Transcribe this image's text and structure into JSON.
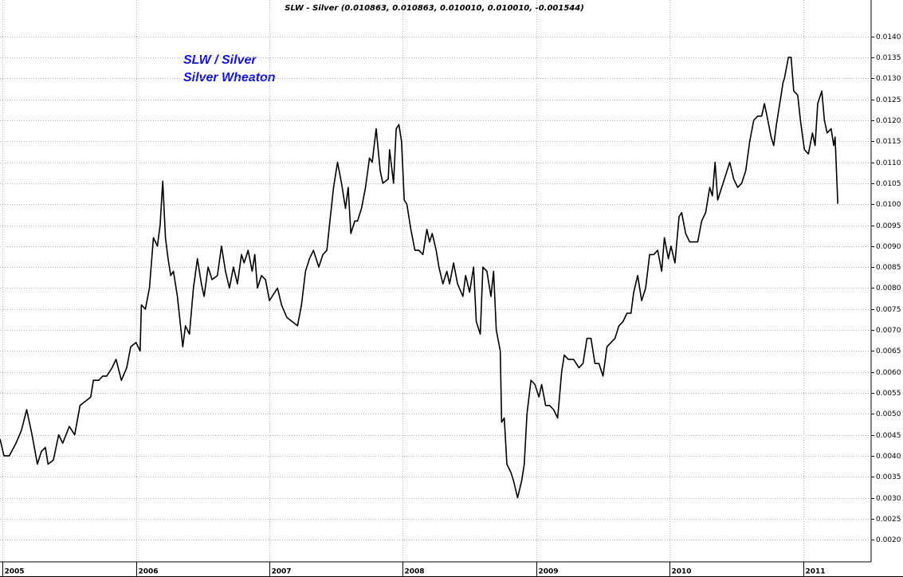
{
  "chart_data": {
    "type": "line",
    "title": "SLW - Silver (0.010863, 0.010863, 0.010010, 0.010010, -0.001544)",
    "annotations": [
      "SLW / Silver",
      "Silver Wheaton"
    ],
    "annotation_color": "#1010e0",
    "color": "#000000",
    "grid": true,
    "xlim": [
      2004.98,
      2011.51
    ],
    "xticks": [
      2005,
      2006,
      2007,
      2008,
      2009,
      2010,
      2011
    ],
    "ylim": [
      0.00147,
      0.01487
    ],
    "yticks": [
      {
        "value": 0.002,
        "label": "0.0020"
      },
      {
        "value": 0.0025,
        "label": "0.0025"
      },
      {
        "value": 0.003,
        "label": "0.0030"
      },
      {
        "value": 0.0035,
        "label": "0.0035"
      },
      {
        "value": 0.004,
        "label": "0.0040"
      },
      {
        "value": 0.0045,
        "label": "0.0045"
      },
      {
        "value": 0.005,
        "label": "0.0050"
      },
      {
        "value": 0.0055,
        "label": "0.0055"
      },
      {
        "value": 0.006,
        "label": "0.0060"
      },
      {
        "value": 0.0065,
        "label": "0.0065"
      },
      {
        "value": 0.007,
        "label": "0.0070"
      },
      {
        "value": 0.0075,
        "label": "0.0075"
      },
      {
        "value": 0.008,
        "label": "0.0080"
      },
      {
        "value": 0.0085,
        "label": "0.0085"
      },
      {
        "value": 0.009,
        "label": "0.0090"
      },
      {
        "value": 0.0095,
        "label": "0.0095"
      },
      {
        "value": 0.01,
        "label": "0.0100"
      },
      {
        "value": 0.0105,
        "label": "0.0105"
      },
      {
        "value": 0.011,
        "label": "0.0110"
      },
      {
        "value": 0.0115,
        "label": "0.0115"
      },
      {
        "value": 0.012,
        "label": "0.0120"
      },
      {
        "value": 0.0125,
        "label": "0.0125"
      },
      {
        "value": 0.013,
        "label": "0.0130"
      },
      {
        "value": 0.0135,
        "label": "0.0135"
      },
      {
        "value": 0.014,
        "label": "0.0140"
      }
    ],
    "x": [
      2004.98,
      2005.01,
      2005.05,
      2005.1,
      2005.14,
      2005.18,
      2005.22,
      2005.26,
      2005.29,
      2005.32,
      2005.34,
      2005.38,
      2005.42,
      2005.45,
      2005.5,
      2005.54,
      2005.58,
      2005.62,
      2005.66,
      2005.68,
      2005.72,
      2005.75,
      2005.78,
      2005.82,
      2005.85,
      2005.89,
      2005.93,
      2005.96,
      2006.0,
      2006.03,
      2006.04,
      2006.07,
      2006.1,
      2006.13,
      2006.16,
      2006.18,
      2006.2,
      2006.22,
      2006.24,
      2006.26,
      2006.28,
      2006.31,
      2006.35,
      2006.37,
      2006.4,
      2006.43,
      2006.46,
      2006.49,
      2006.51,
      2006.54,
      2006.57,
      2006.61,
      2006.64,
      2006.67,
      2006.7,
      2006.73,
      2006.76,
      2006.79,
      2006.81,
      2006.84,
      2006.87,
      2006.89,
      2006.91,
      2006.94,
      2006.97,
      2007.0,
      2007.04,
      2007.06,
      2007.09,
      2007.13,
      2007.17,
      2007.21,
      2007.24,
      2007.27,
      2007.3,
      2007.33,
      2007.37,
      2007.4,
      2007.43,
      2007.45,
      2007.48,
      2007.51,
      2007.54,
      2007.57,
      2007.59,
      2007.61,
      2007.64,
      2007.66,
      2007.69,
      2007.72,
      2007.75,
      2007.77,
      2007.8,
      2007.83,
      2007.85,
      2007.89,
      2007.9,
      2007.93,
      2007.95,
      2007.97,
      2007.99,
      2008.01,
      2008.03,
      2008.06,
      2008.09,
      2008.12,
      2008.15,
      2008.18,
      2008.2,
      2008.22,
      2008.25,
      2008.27,
      2008.3,
      2008.33,
      2008.35,
      2008.38,
      2008.41,
      2008.45,
      2008.47,
      2008.5,
      2008.53,
      2008.55,
      2008.58,
      2008.6,
      2008.63,
      2008.66,
      2008.68,
      2008.7,
      2008.73,
      2008.74,
      2008.76,
      2008.78,
      2008.81,
      2008.83,
      2008.86,
      2008.89,
      2008.91,
      2008.93,
      2008.96,
      2008.99,
      2009.02,
      2009.04,
      2009.07,
      2009.1,
      2009.13,
      2009.16,
      2009.19,
      2009.21,
      2009.24,
      2009.28,
      2009.32,
      2009.35,
      2009.38,
      2009.41,
      2009.44,
      2009.47,
      2009.5,
      2009.53,
      2009.56,
      2009.59,
      2009.62,
      2009.65,
      2009.68,
      2009.71,
      2009.73,
      2009.76,
      2009.79,
      2009.82,
      2009.85,
      2009.88,
      2009.91,
      2009.94,
      2009.96,
      2009.99,
      2010.01,
      2010.04,
      2010.07,
      2010.09,
      2010.12,
      2010.15,
      2010.18,
      2010.21,
      2010.24,
      2010.27,
      2010.3,
      2010.32,
      2010.34,
      2010.36,
      2010.39,
      2010.42,
      2010.45,
      2010.48,
      2010.51,
      2010.54,
      2010.57,
      2010.6,
      2010.63,
      2010.66,
      2010.69,
      2010.71,
      2010.73,
      2010.76,
      2010.78,
      2010.8,
      2010.83,
      2010.85,
      2010.86,
      2010.89,
      2010.91,
      2010.93,
      2010.96,
      2010.98,
      2011.01,
      2011.04,
      2011.07,
      2011.09,
      2011.11,
      2011.14,
      2011.16,
      2011.18,
      2011.21,
      2011.23,
      2011.24,
      2011.26
    ],
    "values": [
      0.0044,
      0.004,
      0.004,
      0.0043,
      0.0046,
      0.0051,
      0.0045,
      0.0038,
      0.0041,
      0.0042,
      0.0038,
      0.0039,
      0.0045,
      0.0043,
      0.0047,
      0.0045,
      0.0052,
      0.0053,
      0.0054,
      0.0058,
      0.0058,
      0.0059,
      0.0059,
      0.0061,
      0.0063,
      0.0058,
      0.0061,
      0.0066,
      0.0067,
      0.0065,
      0.0076,
      0.0075,
      0.008,
      0.0092,
      0.009,
      0.0095,
      0.01055,
      0.0092,
      0.0087,
      0.0083,
      0.0084,
      0.0078,
      0.0066,
      0.0071,
      0.0069,
      0.008,
      0.0087,
      0.0081,
      0.0078,
      0.0085,
      0.0082,
      0.0083,
      0.009,
      0.0084,
      0.008,
      0.0085,
      0.0081,
      0.0088,
      0.0086,
      0.0089,
      0.0084,
      0.0088,
      0.008,
      0.0083,
      0.0082,
      0.0077,
      0.0079,
      0.008,
      0.0076,
      0.0073,
      0.0072,
      0.0071,
      0.0076,
      0.0084,
      0.0087,
      0.0089,
      0.0085,
      0.0088,
      0.0089,
      0.0095,
      0.0104,
      0.011,
      0.0105,
      0.0099,
      0.0104,
      0.0093,
      0.0096,
      0.0096,
      0.0099,
      0.0104,
      0.0111,
      0.011,
      0.0118,
      0.0108,
      0.0105,
      0.0106,
      0.0113,
      0.0105,
      0.0118,
      0.0119,
      0.0115,
      0.0101,
      0.01,
      0.0094,
      0.0089,
      0.0089,
      0.0088,
      0.0094,
      0.0091,
      0.0093,
      0.0089,
      0.0085,
      0.0081,
      0.0084,
      0.0081,
      0.0086,
      0.0081,
      0.0078,
      0.0083,
      0.0079,
      0.0085,
      0.0072,
      0.0069,
      0.0085,
      0.0084,
      0.0078,
      0.0084,
      0.007,
      0.0065,
      0.0048,
      0.0049,
      0.0038,
      0.0036,
      0.0034,
      0.003,
      0.0034,
      0.0038,
      0.005,
      0.0058,
      0.0057,
      0.0054,
      0.0057,
      0.0052,
      0.0052,
      0.0051,
      0.0049,
      0.006,
      0.0064,
      0.0063,
      0.0063,
      0.0061,
      0.0062,
      0.0068,
      0.0068,
      0.0062,
      0.0062,
      0.0059,
      0.0066,
      0.0067,
      0.0068,
      0.0071,
      0.0072,
      0.0074,
      0.0074,
      0.0079,
      0.0083,
      0.0077,
      0.008,
      0.0088,
      0.0088,
      0.0089,
      0.0084,
      0.0092,
      0.0087,
      0.009,
      0.0086,
      0.0097,
      0.0098,
      0.0093,
      0.0091,
      0.0091,
      0.0091,
      0.0096,
      0.0098,
      0.0104,
      0.0102,
      0.011,
      0.0101,
      0.0104,
      0.0107,
      0.011,
      0.0106,
      0.0104,
      0.0105,
      0.0108,
      0.0115,
      0.012,
      0.0121,
      0.0121,
      0.0124,
      0.0121,
      0.0116,
      0.0114,
      0.0119,
      0.0125,
      0.0129,
      0.013,
      0.0135,
      0.0135,
      0.0127,
      0.0126,
      0.012,
      0.0113,
      0.0112,
      0.0117,
      0.0114,
      0.0124,
      0.0127,
      0.012,
      0.0117,
      0.0118,
      0.0114,
      0.0116,
      0.01001
    ]
  }
}
